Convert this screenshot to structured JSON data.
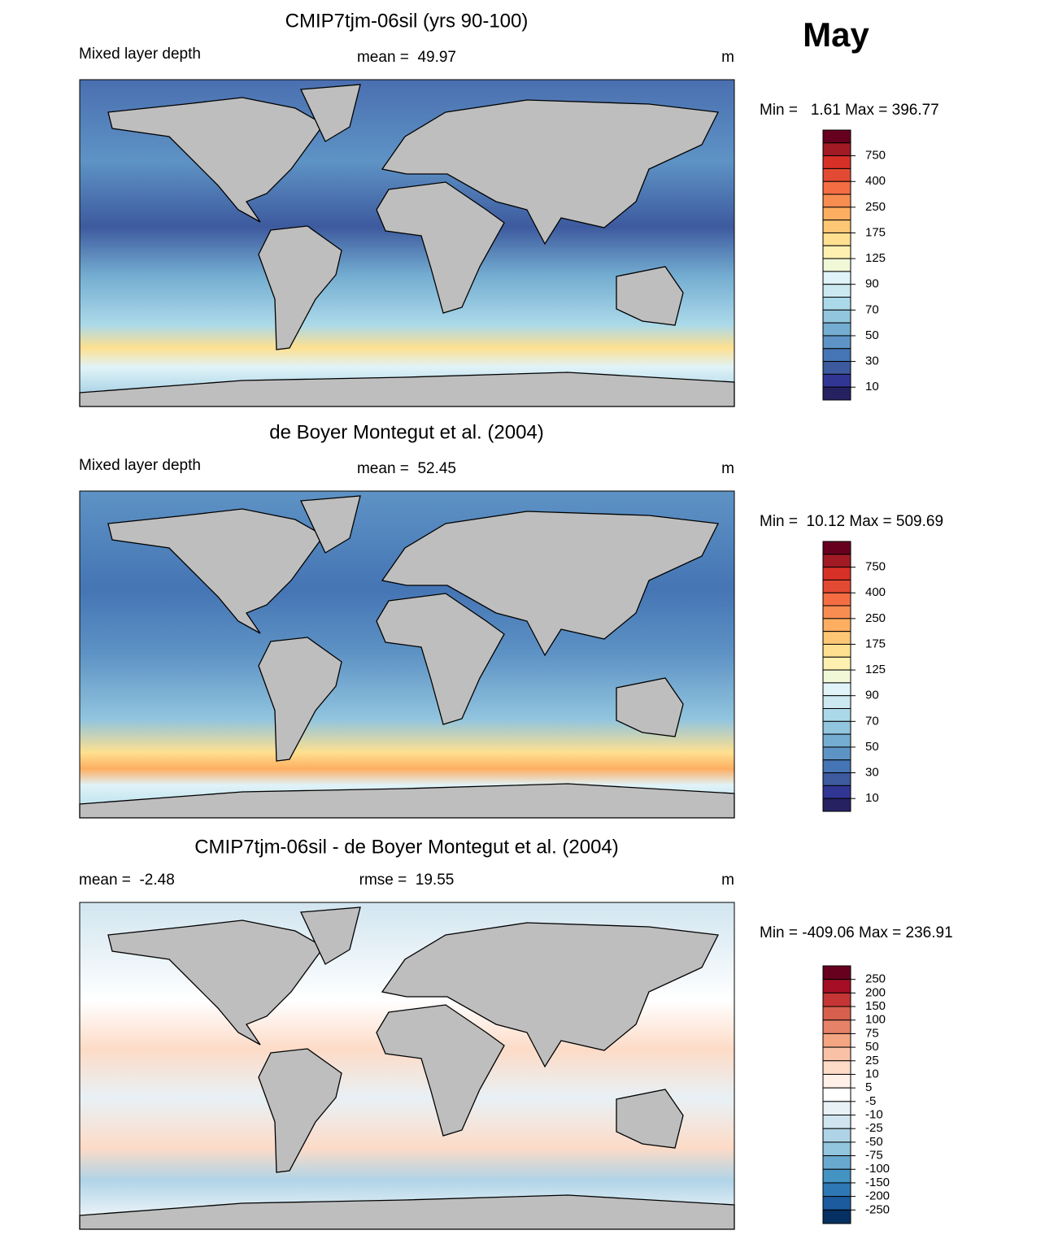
{
  "header": {
    "month": "May"
  },
  "panels": [
    {
      "title": "CMIP7tjm-06sil (yrs 90-100)",
      "left": "Mixed layer depth",
      "center": "mean =  49.97",
      "right": "m",
      "range": "Min =   1.61 Max = 396.77",
      "colorbar": {
        "labels": [
          750,
          400,
          250,
          175,
          125,
          90,
          70,
          50,
          30,
          10
        ],
        "colors": [
          "#67001f",
          "#a11a24",
          "#d73027",
          "#e34a33",
          "#f46d43",
          "#f88d52",
          "#fdae61",
          "#fdc776",
          "#fee090",
          "#fef0b0",
          "#f0f8d8",
          "#e0f3f8",
          "#cce8f0",
          "#abd9e9",
          "#92c5de",
          "#74add1",
          "#5e93c5",
          "#4575b4",
          "#3d5a9e",
          "#313695",
          "#262262"
        ]
      }
    },
    {
      "title": "de Boyer Montegut et al. (2004)",
      "left": "Mixed layer depth",
      "center": "mean =  52.45",
      "right": "m",
      "range": "Min =  10.12 Max = 509.69",
      "colorbar": {
        "labels": [
          750,
          400,
          250,
          175,
          125,
          90,
          70,
          50,
          30,
          10
        ],
        "colors": [
          "#67001f",
          "#a11a24",
          "#d73027",
          "#e34a33",
          "#f46d43",
          "#f88d52",
          "#fdae61",
          "#fdc776",
          "#fee090",
          "#fef0b0",
          "#f0f8d8",
          "#e0f3f8",
          "#cce8f0",
          "#abd9e9",
          "#92c5de",
          "#74add1",
          "#5e93c5",
          "#4575b4",
          "#3d5a9e",
          "#313695",
          "#262262"
        ]
      }
    },
    {
      "title": "CMIP7tjm-06sil - de Boyer Montegut et al. (2004)",
      "left": "mean =  -2.48",
      "center": "rmse =  19.55",
      "right": "m",
      "range": "Min = -409.06 Max = 236.91",
      "colorbar": {
        "labels": [
          250,
          200,
          150,
          100,
          75,
          50,
          25,
          10,
          5,
          -5,
          -10,
          -25,
          -50,
          -75,
          -100,
          -150,
          -200,
          -250
        ],
        "colors": [
          "#67001f",
          "#a50f26",
          "#c53535",
          "#d6604d",
          "#e58267",
          "#f4a582",
          "#f9c2a6",
          "#fddbc7",
          "#fff0e8",
          "#ffffff",
          "#e8f1f6",
          "#d1e5f0",
          "#b0d4e7",
          "#92c5de",
          "#6aa9cf",
          "#4393c3",
          "#2e78b5",
          "#1c5b9e",
          "#053061"
        ]
      }
    }
  ]
}
